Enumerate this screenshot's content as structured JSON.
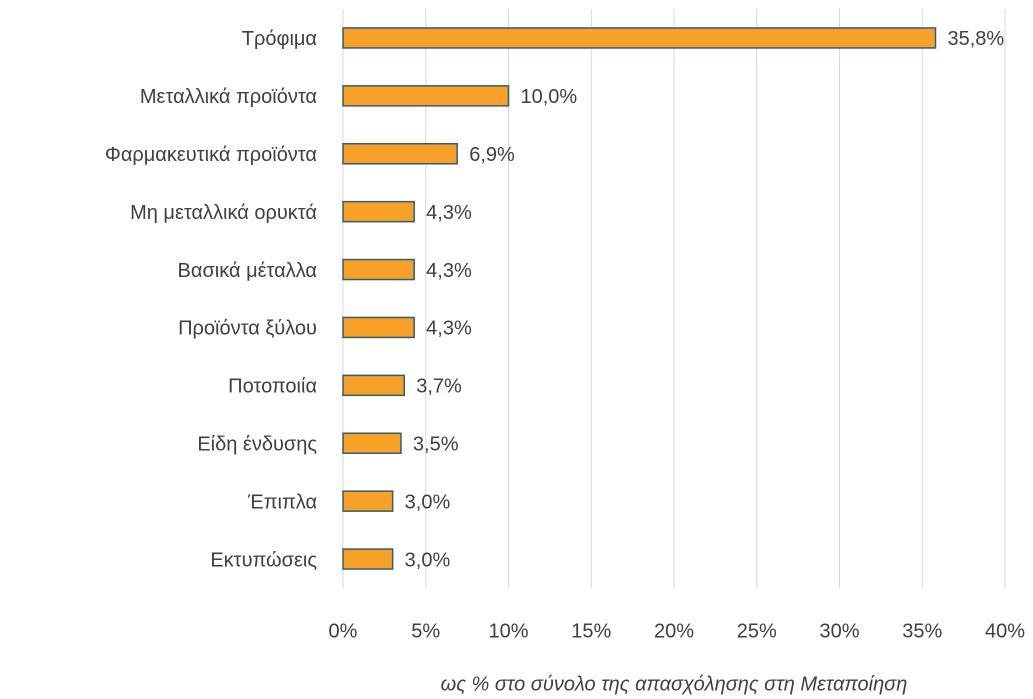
{
  "chart_data": {
    "type": "barh",
    "categories": [
      "Τρόφιμα",
      "Μεταλλικά προϊόντα",
      "Φαρμακευτικά προϊόντα",
      "Μη μεταλλικά ορυκτά",
      "Βασικά μέταλλα",
      "Προϊόντα ξύλου",
      "Ποτοποιία",
      "Είδη ένδυσης",
      "Έπιπλα",
      "Εκτυπώσεις"
    ],
    "values": [
      35.8,
      10.0,
      6.9,
      4.3,
      4.3,
      4.3,
      3.7,
      3.5,
      3.0,
      3.0
    ],
    "value_labels": [
      "35,8%",
      "10,0%",
      "6,9%",
      "4,3%",
      "4,3%",
      "4,3%",
      "3,7%",
      "3,5%",
      "3,0%",
      "3,0%"
    ],
    "color": "#f7a128",
    "edge_color": "#2e5f73",
    "xlim": [
      0,
      40
    ],
    "xticks": [
      {
        "value": 0,
        "label": "0%"
      },
      {
        "value": 5,
        "label": "5%"
      },
      {
        "value": 10,
        "label": "10%"
      },
      {
        "value": 15,
        "label": "15%"
      },
      {
        "value": 20,
        "label": "20%"
      },
      {
        "value": 25,
        "label": "25%"
      },
      {
        "value": 30,
        "label": "30%"
      },
      {
        "value": 35,
        "label": "35%"
      },
      {
        "value": 40,
        "label": "40%"
      }
    ],
    "xlabel": "ως % στο σύνολο της απασχόλησης στη Μεταποίηση",
    "grid": true
  }
}
